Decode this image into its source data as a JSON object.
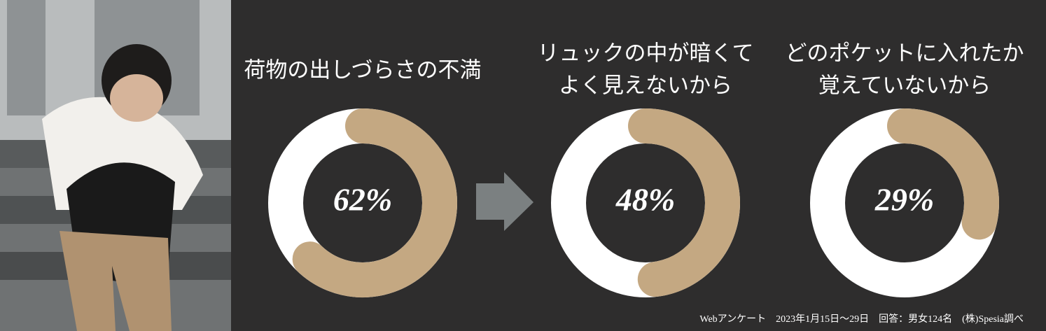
{
  "chart_data": [
    {
      "type": "donut",
      "title": [
        "荷物の出しづらさの不満"
      ],
      "value": 62,
      "value_label": "62%",
      "color": "#c4a882",
      "track_color": "#ffffff"
    },
    {
      "type": "donut",
      "title": [
        "リュックの中が暗くて",
        "よく見えないから"
      ],
      "value": 48,
      "value_label": "48%",
      "color": "#c4a882",
      "track_color": "#ffffff"
    },
    {
      "type": "donut",
      "title": [
        "どのポケットに入れたか",
        "覚えていないから"
      ],
      "value": 29,
      "value_label": "29%",
      "color": "#c4a882",
      "track_color": "#ffffff"
    }
  ],
  "footer": "Webアンケート　2023年1月15日～29日　回答：男女124名　(株)Spesia調べ"
}
